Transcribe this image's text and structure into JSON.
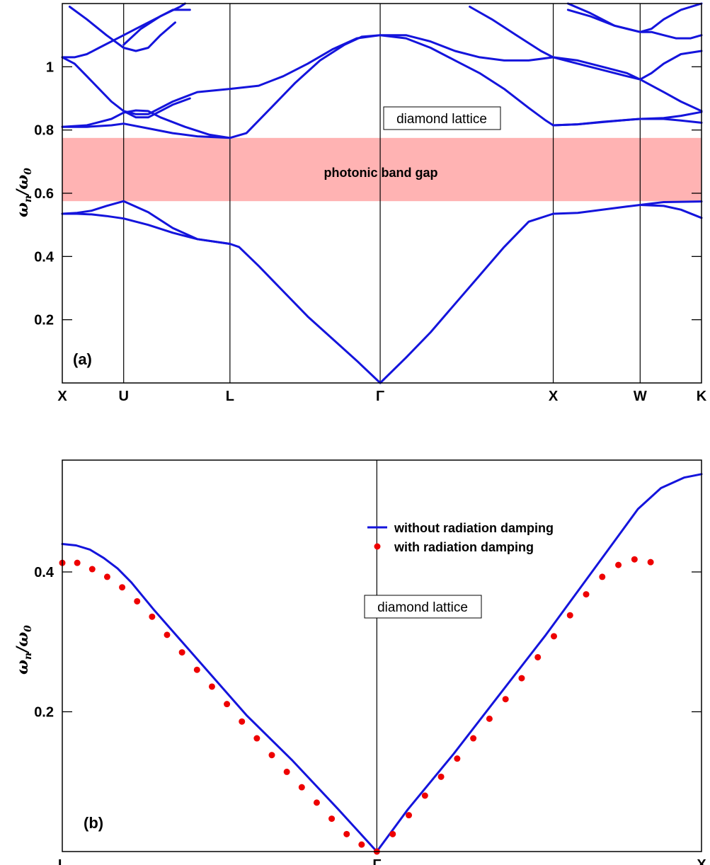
{
  "chart_data": [
    {
      "type": "line",
      "panel_label": "(a)",
      "ylabel": {
        "omega": "ω",
        "sub_n": "n",
        "slash": "/",
        "omega0": "ω",
        "sub_0": "0"
      },
      "x_ticks": [
        "X",
        "U",
        "L",
        "Γ",
        "X",
        "W",
        "K"
      ],
      "x_tick_positions": [
        0,
        0.25,
        0.683,
        1.295,
        2.0,
        2.354,
        2.604
      ],
      "xlim": [
        0,
        2.604
      ],
      "ylim": [
        0,
        1.2
      ],
      "y_ticks": [
        0.2,
        0.4,
        0.6,
        0.8,
        1
      ],
      "band_gap": {
        "range": [
          0.575,
          0.775
        ],
        "label": "photonic band gap",
        "color": "#ffb3b3"
      },
      "annotation": "diamond lattice",
      "line_color": "#1414dc",
      "series": [
        {
          "x": [
            0,
            0.06,
            0.12,
            0.18,
            0.25,
            0.35,
            0.45,
            0.55,
            0.683
          ],
          "y": [
            0.535,
            0.538,
            0.545,
            0.56,
            0.575,
            0.54,
            0.49,
            0.455,
            0.44
          ]
        },
        {
          "x": [
            0,
            0.06,
            0.12,
            0.18,
            0.25,
            0.35,
            0.45,
            0.55,
            0.683
          ],
          "y": [
            0.535,
            0.535,
            0.533,
            0.528,
            0.52,
            0.5,
            0.475,
            0.455,
            0.44
          ]
        },
        {
          "x": [
            0.683,
            0.72,
            0.8,
            0.9,
            1.0,
            1.1,
            1.2,
            1.295
          ],
          "y": [
            0.44,
            0.43,
            0.37,
            0.29,
            0.21,
            0.14,
            0.07,
            0.0
          ]
        },
        {
          "x": [
            1.295,
            1.4,
            1.5,
            1.6,
            1.7,
            1.8,
            1.9,
            2.0
          ],
          "y": [
            0.0,
            0.08,
            0.16,
            0.25,
            0.34,
            0.43,
            0.51,
            0.535
          ]
        },
        {
          "x": [
            2.0,
            2.1,
            2.2,
            2.3,
            2.354,
            2.45,
            2.52,
            2.604
          ],
          "y": [
            0.535,
            0.538,
            0.548,
            0.558,
            0.563,
            0.56,
            0.548,
            0.522
          ]
        },
        {
          "x": [
            2.354,
            2.45,
            2.52,
            2.604
          ],
          "y": [
            0.563,
            0.572,
            0.573,
            0.574
          ]
        },
        {
          "x": [
            0,
            0.1,
            0.2,
            0.25,
            0.35,
            0.45,
            0.55,
            0.683
          ],
          "y": [
            0.81,
            0.81,
            0.815,
            0.82,
            0.805,
            0.79,
            0.78,
            0.775
          ]
        },
        {
          "x": [
            0,
            0.1,
            0.2,
            0.25,
            0.3,
            0.35,
            0.4,
            0.5,
            0.6,
            0.683
          ],
          "y": [
            0.81,
            0.815,
            0.835,
            0.855,
            0.862,
            0.86,
            0.84,
            0.81,
            0.785,
            0.775
          ]
        },
        {
          "x": [
            0.683,
            0.75,
            0.85,
            0.95,
            1.05,
            1.15,
            1.22,
            1.295
          ],
          "y": [
            0.775,
            0.79,
            0.87,
            0.95,
            1.02,
            1.07,
            1.095,
            1.1
          ]
        },
        {
          "x": [
            0.25,
            0.3,
            0.35,
            0.45,
            0.55,
            0.683,
            0.8,
            0.9,
            1.0,
            1.1,
            1.2,
            1.295
          ],
          "y": [
            0.86,
            0.85,
            0.85,
            0.89,
            0.92,
            0.93,
            0.94,
            0.97,
            1.01,
            1.055,
            1.09,
            1.1
          ]
        },
        {
          "x": [
            1.295,
            1.4,
            1.5,
            1.6,
            1.7,
            1.8,
            1.9,
            2.0
          ],
          "y": [
            1.1,
            1.1,
            1.08,
            1.05,
            1.03,
            1.02,
            1.02,
            1.03
          ]
        },
        {
          "x": [
            1.295,
            1.4,
            1.5,
            1.6,
            1.7,
            1.8,
            1.9,
            1.97,
            2.0
          ],
          "y": [
            1.1,
            1.09,
            1.06,
            1.02,
            0.98,
            0.93,
            0.87,
            0.83,
            0.815
          ]
        },
        {
          "x": [
            2.0,
            2.1,
            2.2,
            2.3,
            2.354,
            2.45,
            2.52,
            2.604
          ],
          "y": [
            0.815,
            0.818,
            0.825,
            0.832,
            0.835,
            0.835,
            0.83,
            0.823
          ]
        },
        {
          "x": [
            2.0,
            2.1,
            2.2,
            2.354,
            2.45,
            2.52,
            2.604
          ],
          "y": [
            0.815,
            0.818,
            0.826,
            0.835,
            0.838,
            0.845,
            0.857
          ]
        },
        {
          "x": [
            0,
            0.05,
            0.1,
            0.15,
            0.2,
            0.25,
            0.3,
            0.35,
            0.4,
            0.45,
            0.52
          ],
          "y": [
            1.03,
            1.03,
            1.04,
            1.06,
            1.08,
            1.1,
            1.12,
            1.14,
            1.16,
            1.18,
            1.18
          ]
        },
        {
          "x": [
            0,
            0.05,
            0.1,
            0.15,
            0.2,
            0.25,
            0.3,
            0.35,
            0.4,
            0.45,
            0.52
          ],
          "y": [
            1.03,
            1.01,
            0.97,
            0.93,
            0.89,
            0.86,
            0.84,
            0.84,
            0.86,
            0.88,
            0.9
          ]
        },
        {
          "x": [
            0.03,
            0.1,
            0.18,
            0.25,
            0.3,
            0.35,
            0.4,
            0.46
          ],
          "y": [
            1.19,
            1.15,
            1.1,
            1.06,
            1.05,
            1.06,
            1.1,
            1.14
          ]
        },
        {
          "x": [
            0.25,
            0.32,
            0.4,
            0.48,
            0.5
          ],
          "y": [
            1.07,
            1.12,
            1.16,
            1.19,
            1.2
          ]
        },
        {
          "x": [
            1.66,
            1.75,
            1.85,
            1.95,
            2.0
          ],
          "y": [
            1.19,
            1.15,
            1.1,
            1.05,
            1.03
          ]
        },
        {
          "x": [
            2.0,
            2.1,
            2.2,
            2.3,
            2.354,
            2.45,
            2.52,
            2.604
          ],
          "y": [
            1.03,
            1.02,
            1.0,
            0.98,
            0.96,
            0.92,
            0.89,
            0.86
          ]
        },
        {
          "x": [
            2.0,
            2.1,
            2.2,
            2.3,
            2.354,
            2.4,
            2.45,
            2.52,
            2.604
          ],
          "y": [
            1.03,
            1.01,
            0.99,
            0.97,
            0.96,
            0.98,
            1.01,
            1.04,
            1.05
          ]
        },
        {
          "x": [
            2.06,
            2.15,
            2.25,
            2.354,
            2.4,
            2.45,
            2.52,
            2.604
          ],
          "y": [
            1.2,
            1.17,
            1.13,
            1.11,
            1.12,
            1.15,
            1.18,
            1.2
          ]
        },
        {
          "x": [
            2.06,
            2.15,
            2.25,
            2.354,
            2.4,
            2.45,
            2.5,
            2.56,
            2.604
          ],
          "y": [
            1.18,
            1.16,
            1.13,
            1.11,
            1.11,
            1.1,
            1.09,
            1.09,
            1.1
          ]
        }
      ]
    },
    {
      "type": "line",
      "panel_label": "(b)",
      "ylabel": {
        "omega": "ω",
        "sub_n": "n",
        "slash": "/",
        "omega0": "ω",
        "sub_0": "0"
      },
      "x_ticks": [
        "L",
        "Γ",
        "X"
      ],
      "x_tick_positions": [
        0,
        0.683,
        1.388
      ],
      "xlim": [
        0,
        1.388
      ],
      "ylim": [
        0,
        0.56
      ],
      "y_ticks": [
        0.2,
        0.4
      ],
      "annotation": "diamond lattice",
      "legend": {
        "position": "top-right",
        "entries": [
          "without radiation damping",
          "with radiation damping"
        ]
      },
      "series": [
        {
          "name": "without radiation damping",
          "color": "#1414dc",
          "x": [
            0,
            0.03,
            0.06,
            0.09,
            0.12,
            0.15,
            0.2,
            0.3,
            0.4,
            0.5,
            0.6,
            0.683,
            0.75,
            0.85,
            0.95,
            1.05,
            1.15,
            1.2,
            1.25,
            1.3,
            1.35,
            1.388
          ],
          "y": [
            0.44,
            0.438,
            0.432,
            0.42,
            0.405,
            0.385,
            0.345,
            0.27,
            0.195,
            0.13,
            0.06,
            0.0,
            0.06,
            0.14,
            0.225,
            0.31,
            0.4,
            0.445,
            0.49,
            0.52,
            0.535,
            0.54
          ]
        },
        {
          "name": "with radiation damping",
          "color": "#ee0000",
          "x": [
            0,
            0.0325,
            0.065,
            0.0975,
            0.13,
            0.1625,
            0.195,
            0.2275,
            0.26,
            0.2925,
            0.325,
            0.3575,
            0.39,
            0.4225,
            0.455,
            0.4875,
            0.52,
            0.5525,
            0.585,
            0.6175,
            0.65,
            0.683,
            0.7175,
            0.7525,
            0.7875,
            0.8225,
            0.8575,
            0.8925,
            0.9275,
            0.9625,
            0.9975,
            1.0325,
            1.0675,
            1.1025,
            1.1375,
            1.1725,
            1.2075,
            1.2425,
            1.2775
          ],
          "y": [
            0.413,
            0.413,
            0.404,
            0.393,
            0.378,
            0.358,
            0.336,
            0.31,
            0.285,
            0.26,
            0.236,
            0.211,
            0.186,
            0.162,
            0.138,
            0.114,
            0.092,
            0.07,
            0.047,
            0.025,
            0.01,
            0.0,
            0.025,
            0.052,
            0.08,
            0.107,
            0.133,
            0.162,
            0.19,
            0.218,
            0.248,
            0.278,
            0.308,
            0.338,
            0.368,
            0.393,
            0.41,
            0.418,
            0.414
          ]
        }
      ]
    }
  ]
}
